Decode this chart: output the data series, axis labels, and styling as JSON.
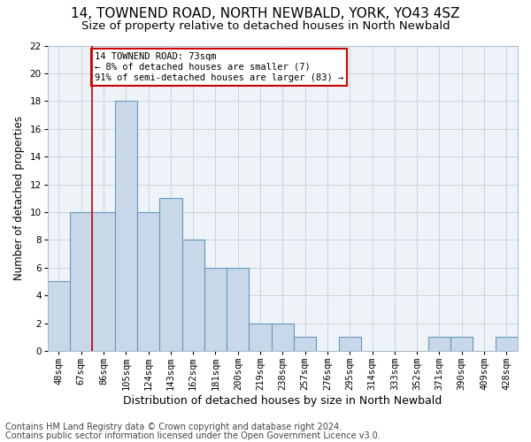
{
  "title1": "14, TOWNEND ROAD, NORTH NEWBALD, YORK, YO43 4SZ",
  "title2": "Size of property relative to detached houses in North Newbald",
  "xlabel": "Distribution of detached houses by size in North Newbald",
  "ylabel": "Number of detached properties",
  "footer1": "Contains HM Land Registry data © Crown copyright and database right 2024.",
  "footer2": "Contains public sector information licensed under the Open Government Licence v3.0.",
  "bins": [
    "48sqm",
    "67sqm",
    "86sqm",
    "105sqm",
    "124sqm",
    "143sqm",
    "162sqm",
    "181sqm",
    "200sqm",
    "219sqm",
    "238sqm",
    "257sqm",
    "276sqm",
    "295sqm",
    "314sqm",
    "333sqm",
    "352sqm",
    "371sqm",
    "390sqm",
    "409sqm",
    "428sqm"
  ],
  "values": [
    5,
    10,
    10,
    18,
    10,
    11,
    8,
    6,
    6,
    2,
    2,
    1,
    0,
    1,
    0,
    0,
    0,
    1,
    1,
    0,
    1
  ],
  "bar_color": "#c8d8e8",
  "bar_edge_color": "#6699bb",
  "bar_linewidth": 0.8,
  "vline_x": 1.5,
  "vline_color": "#cc0000",
  "annotation_text": "14 TOWNEND ROAD: 73sqm\n← 8% of detached houses are smaller (7)\n91% of semi-detached houses are larger (83) →",
  "annotation_box_color": "#ffffff",
  "annotation_box_edge": "#cc0000",
  "ylim": [
    0,
    22
  ],
  "yticks": [
    0,
    2,
    4,
    6,
    8,
    10,
    12,
    14,
    16,
    18,
    20,
    22
  ],
  "grid_color": "#c8d4e0",
  "bg_color": "#eef3f8",
  "title1_fontsize": 11,
  "title2_fontsize": 9.5,
  "xlabel_fontsize": 9,
  "ylabel_fontsize": 8.5,
  "tick_fontsize": 7.5,
  "annot_fontsize": 7.5,
  "footer_fontsize": 7
}
